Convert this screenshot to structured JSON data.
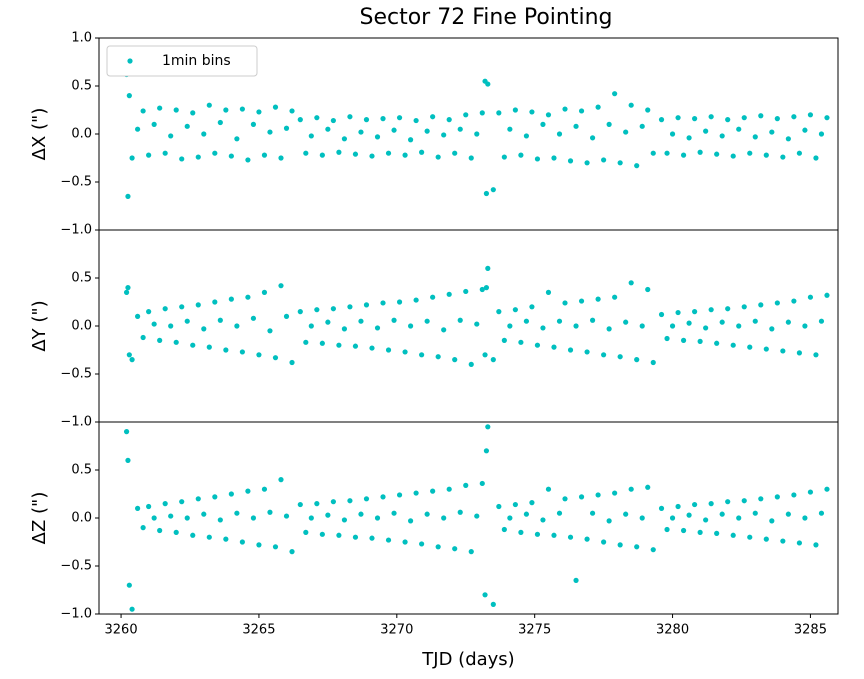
{
  "chart_data": [
    {
      "type": "scatter",
      "title": "Sector 72 Fine Pointing",
      "ylabel": "ΔX (\")",
      "legend": "upper left",
      "x": [
        3260.2,
        3260.4,
        3260.6,
        3260.8,
        3261.0,
        3261.2,
        3261.4,
        3261.6,
        3261.8,
        3262.0,
        3262.2,
        3262.4,
        3262.6,
        3262.8,
        3263.0,
        3263.2,
        3263.4,
        3263.6,
        3263.8,
        3264.0,
        3264.2,
        3264.4,
        3264.6,
        3264.8,
        3265.0,
        3265.2,
        3265.4,
        3265.6,
        3265.8,
        3266.0,
        3266.2,
        3266.5,
        3266.7,
        3266.9,
        3267.1,
        3267.3,
        3267.5,
        3267.7,
        3267.9,
        3268.1,
        3268.3,
        3268.5,
        3268.7,
        3268.9,
        3269.1,
        3269.3,
        3269.5,
        3269.7,
        3269.9,
        3270.1,
        3270.3,
        3270.5,
        3270.7,
        3270.9,
        3271.1,
        3271.3,
        3271.5,
        3271.7,
        3271.9,
        3272.1,
        3272.3,
        3272.5,
        3272.7,
        3272.9,
        3273.1,
        3273.3,
        3273.5,
        3273.7,
        3273.9,
        3274.1,
        3274.3,
        3274.5,
        3274.7,
        3274.9,
        3275.1,
        3275.3,
        3275.5,
        3275.7,
        3275.9,
        3276.1,
        3276.3,
        3276.5,
        3276.7,
        3276.9,
        3277.1,
        3277.3,
        3277.5,
        3277.7,
        3277.9,
        3278.1,
        3278.3,
        3278.5,
        3278.7,
        3278.9,
        3279.1,
        3279.3,
        3279.6,
        3279.8,
        3280.0,
        3280.2,
        3280.4,
        3280.6,
        3280.8,
        3281.0,
        3281.2,
        3281.4,
        3281.6,
        3281.8,
        3282.0,
        3282.2,
        3282.4,
        3282.6,
        3282.8,
        3283.0,
        3283.2,
        3283.4,
        3283.6,
        3283.8,
        3284.0,
        3284.2,
        3284.4,
        3284.6,
        3284.8,
        3285.0,
        3285.2,
        3285.4,
        3285.6,
        3260.25,
        3260.3,
        3273.2,
        3273.25
      ],
      "series": [
        {
          "name": "1min bins",
          "color": "#00bfbf",
          "values": [
            0.62,
            -0.25,
            0.05,
            0.24,
            -0.22,
            0.1,
            0.27,
            -0.2,
            -0.02,
            0.25,
            -0.26,
            0.08,
            0.22,
            -0.24,
            0.0,
            0.3,
            -0.2,
            0.12,
            0.25,
            -0.23,
            -0.05,
            0.26,
            -0.27,
            0.1,
            0.23,
            -0.22,
            0.02,
            0.28,
            -0.25,
            0.06,
            0.24,
            0.15,
            -0.2,
            -0.02,
            0.17,
            -0.22,
            0.05,
            0.14,
            -0.19,
            -0.05,
            0.18,
            -0.21,
            0.02,
            0.15,
            -0.23,
            -0.03,
            0.16,
            -0.2,
            0.04,
            0.17,
            -0.22,
            -0.06,
            0.14,
            -0.19,
            0.03,
            0.18,
            -0.24,
            -0.01,
            0.15,
            -0.2,
            0.05,
            0.2,
            -0.25,
            0.0,
            0.22,
            0.52,
            -0.58,
            0.22,
            -0.24,
            0.05,
            0.25,
            -0.22,
            -0.02,
            0.23,
            -0.26,
            0.1,
            0.2,
            -0.25,
            0.0,
            0.26,
            -0.28,
            0.08,
            0.24,
            -0.3,
            -0.04,
            0.28,
            -0.27,
            0.1,
            0.42,
            -0.3,
            0.02,
            0.3,
            -0.33,
            0.08,
            0.25,
            -0.2,
            0.15,
            -0.2,
            0.0,
            0.17,
            -0.22,
            -0.04,
            0.16,
            -0.19,
            0.03,
            0.18,
            -0.21,
            -0.02,
            0.15,
            -0.23,
            0.05,
            0.17,
            -0.2,
            -0.03,
            0.19,
            -0.22,
            0.02,
            0.16,
            -0.24,
            -0.05,
            0.18,
            -0.2,
            0.04,
            0.2,
            -0.25,
            0.0,
            0.17,
            -0.65,
            0.4,
            0.55,
            -0.62
          ]
        }
      ],
      "xlim": [
        3259.2,
        3286.0
      ],
      "ylim": [
        -1,
        1
      ],
      "yticks": [
        {
          "value": -1,
          "label": "−1.0"
        },
        {
          "value": -0.5,
          "label": "−0.5"
        },
        {
          "value": 0,
          "label": "0.0"
        },
        0.5,
        {
          "value": 1,
          "label": "1.0"
        }
      ]
    },
    {
      "type": "scatter",
      "ylabel": "ΔY (\")",
      "color": "#00bfbf",
      "x": [
        3260.2,
        3260.4,
        3260.6,
        3260.8,
        3261.0,
        3261.2,
        3261.4,
        3261.6,
        3261.8,
        3262.0,
        3262.2,
        3262.4,
        3262.6,
        3262.8,
        3263.0,
        3263.2,
        3263.4,
        3263.6,
        3263.8,
        3264.0,
        3264.2,
        3264.4,
        3264.6,
        3264.8,
        3265.0,
        3265.2,
        3265.4,
        3265.6,
        3265.8,
        3266.0,
        3266.2,
        3266.5,
        3266.7,
        3266.9,
        3267.1,
        3267.3,
        3267.5,
        3267.7,
        3267.9,
        3268.1,
        3268.3,
        3268.5,
        3268.7,
        3268.9,
        3269.1,
        3269.3,
        3269.5,
        3269.7,
        3269.9,
        3270.1,
        3270.3,
        3270.5,
        3270.7,
        3270.9,
        3271.1,
        3271.3,
        3271.5,
        3271.7,
        3271.9,
        3272.1,
        3272.3,
        3272.5,
        3272.7,
        3272.9,
        3273.1,
        3273.3,
        3273.5,
        3273.7,
        3273.9,
        3274.1,
        3274.3,
        3274.5,
        3274.7,
        3274.9,
        3275.1,
        3275.3,
        3275.5,
        3275.7,
        3275.9,
        3276.1,
        3276.3,
        3276.5,
        3276.7,
        3276.9,
        3277.1,
        3277.3,
        3277.5,
        3277.7,
        3277.9,
        3278.1,
        3278.3,
        3278.5,
        3278.7,
        3278.9,
        3279.1,
        3279.3,
        3279.6,
        3279.8,
        3280.0,
        3280.2,
        3280.4,
        3280.6,
        3280.8,
        3281.0,
        3281.2,
        3281.4,
        3281.6,
        3281.8,
        3282.0,
        3282.2,
        3282.4,
        3282.6,
        3282.8,
        3283.0,
        3283.2,
        3283.4,
        3283.6,
        3283.8,
        3284.0,
        3284.2,
        3284.4,
        3284.6,
        3284.8,
        3285.0,
        3285.2,
        3285.4,
        3285.6,
        3260.25,
        3260.3,
        3273.2,
        3273.25
      ],
      "values": [
        0.35,
        -0.35,
        0.1,
        -0.12,
        0.15,
        0.02,
        -0.15,
        0.18,
        0.0,
        -0.17,
        0.2,
        0.05,
        -0.2,
        0.22,
        -0.03,
        -0.22,
        0.25,
        0.06,
        -0.25,
        0.28,
        0.0,
        -0.27,
        0.3,
        0.08,
        -0.3,
        0.35,
        -0.05,
        -0.33,
        0.42,
        0.1,
        -0.38,
        0.15,
        -0.17,
        0.0,
        0.17,
        -0.18,
        0.04,
        0.18,
        -0.2,
        -0.03,
        0.2,
        -0.21,
        0.05,
        0.22,
        -0.23,
        -0.02,
        0.24,
        -0.25,
        0.06,
        0.25,
        -0.27,
        0.0,
        0.27,
        -0.3,
        0.05,
        0.3,
        -0.32,
        -0.04,
        0.33,
        -0.35,
        0.06,
        0.36,
        -0.4,
        0.02,
        0.38,
        0.6,
        -0.35,
        0.15,
        -0.15,
        0.0,
        0.17,
        -0.17,
        0.05,
        0.2,
        -0.2,
        -0.02,
        0.35,
        -0.22,
        0.05,
        0.24,
        -0.25,
        0.0,
        0.26,
        -0.27,
        0.06,
        0.28,
        -0.3,
        -0.03,
        0.3,
        -0.32,
        0.04,
        0.45,
        -0.35,
        0.0,
        0.38,
        -0.38,
        0.12,
        -0.13,
        0.0,
        0.14,
        -0.15,
        0.03,
        0.15,
        -0.16,
        -0.02,
        0.17,
        -0.18,
        0.04,
        0.18,
        -0.2,
        0.0,
        0.2,
        -0.22,
        0.05,
        0.22,
        -0.24,
        -0.03,
        0.24,
        -0.26,
        0.04,
        0.26,
        -0.28,
        0.0,
        0.3,
        -0.3,
        0.05,
        0.32,
        0.4,
        -0.3,
        -0.3,
        0.4
      ],
      "xlim": [
        3259.2,
        3286.0
      ],
      "ylim": [
        -1,
        1
      ],
      "yticks": [
        {
          "value": -1,
          "label": "−1.0"
        },
        {
          "value": -0.5,
          "label": "−0.5"
        },
        {
          "value": 0,
          "label": "0.0"
        },
        0.5
      ]
    },
    {
      "type": "scatter",
      "ylabel": "ΔZ (\")",
      "xlabel": "TJD (days)",
      "color": "#00bfbf",
      "x": [
        3260.2,
        3260.4,
        3260.6,
        3260.8,
        3261.0,
        3261.2,
        3261.4,
        3261.6,
        3261.8,
        3262.0,
        3262.2,
        3262.4,
        3262.6,
        3262.8,
        3263.0,
        3263.2,
        3263.4,
        3263.6,
        3263.8,
        3264.0,
        3264.2,
        3264.4,
        3264.6,
        3264.8,
        3265.0,
        3265.2,
        3265.4,
        3265.6,
        3265.8,
        3266.0,
        3266.2,
        3266.5,
        3266.7,
        3266.9,
        3267.1,
        3267.3,
        3267.5,
        3267.7,
        3267.9,
        3268.1,
        3268.3,
        3268.5,
        3268.7,
        3268.9,
        3269.1,
        3269.3,
        3269.5,
        3269.7,
        3269.9,
        3270.1,
        3270.3,
        3270.5,
        3270.7,
        3270.9,
        3271.1,
        3271.3,
        3271.5,
        3271.7,
        3271.9,
        3272.1,
        3272.3,
        3272.5,
        3272.7,
        3272.9,
        3273.1,
        3273.3,
        3273.5,
        3273.7,
        3273.9,
        3274.1,
        3274.3,
        3274.5,
        3274.7,
        3274.9,
        3275.1,
        3275.3,
        3275.5,
        3275.7,
        3275.9,
        3276.1,
        3276.3,
        3276.5,
        3276.7,
        3276.9,
        3277.1,
        3277.3,
        3277.5,
        3277.7,
        3277.9,
        3278.1,
        3278.3,
        3278.5,
        3278.7,
        3278.9,
        3279.1,
        3279.3,
        3279.6,
        3279.8,
        3280.0,
        3280.2,
        3280.4,
        3280.6,
        3280.8,
        3281.0,
        3281.2,
        3281.4,
        3281.6,
        3281.8,
        3282.0,
        3282.2,
        3282.4,
        3282.6,
        3282.8,
        3283.0,
        3283.2,
        3283.4,
        3283.6,
        3283.8,
        3284.0,
        3284.2,
        3284.4,
        3284.6,
        3284.8,
        3285.0,
        3285.2,
        3285.4,
        3285.6,
        3260.25,
        3260.3,
        3273.2,
        3273.25
      ],
      "values": [
        0.9,
        -0.95,
        0.1,
        -0.1,
        0.12,
        0.0,
        -0.13,
        0.15,
        0.02,
        -0.15,
        0.17,
        0.0,
        -0.18,
        0.2,
        0.04,
        -0.2,
        0.22,
        -0.02,
        -0.22,
        0.25,
        0.05,
        -0.25,
        0.28,
        0.0,
        -0.28,
        0.3,
        0.06,
        -0.3,
        0.4,
        0.02,
        -0.35,
        0.14,
        -0.15,
        0.0,
        0.15,
        -0.17,
        0.03,
        0.17,
        -0.18,
        -0.02,
        0.18,
        -0.2,
        0.04,
        0.2,
        -0.21,
        0.0,
        0.22,
        -0.23,
        0.05,
        0.24,
        -0.25,
        -0.03,
        0.26,
        -0.27,
        0.04,
        0.28,
        -0.3,
        0.0,
        0.3,
        -0.32,
        0.06,
        0.34,
        -0.35,
        0.02,
        0.36,
        0.95,
        -0.9,
        0.12,
        -0.12,
        0.0,
        0.14,
        -0.15,
        0.04,
        0.16,
        -0.17,
        -0.02,
        0.3,
        -0.18,
        0.05,
        0.2,
        -0.2,
        -0.65,
        0.22,
        -0.22,
        0.05,
        0.24,
        -0.25,
        -0.03,
        0.26,
        -0.28,
        0.04,
        0.3,
        -0.3,
        0.0,
        0.32,
        -0.33,
        0.1,
        -0.12,
        0.0,
        0.12,
        -0.13,
        0.03,
        0.14,
        -0.15,
        -0.02,
        0.15,
        -0.16,
        0.04,
        0.17,
        -0.18,
        0.0,
        0.18,
        -0.2,
        0.05,
        0.2,
        -0.22,
        -0.03,
        0.22,
        -0.24,
        0.04,
        0.24,
        -0.26,
        0.0,
        0.27,
        -0.28,
        0.05,
        0.3,
        0.6,
        -0.7,
        -0.8,
        0.7
      ],
      "xlim": [
        3259.2,
        3286.0
      ],
      "ylim": [
        -1,
        1
      ],
      "yticks": [
        {
          "value": -1,
          "label": "−1.0"
        },
        {
          "value": -0.5,
          "label": "−0.5"
        },
        {
          "value": 0,
          "label": "0.0"
        },
        0.5
      ],
      "xticks": [
        3260,
        3265,
        3270,
        3275,
        3280,
        3285
      ]
    }
  ]
}
